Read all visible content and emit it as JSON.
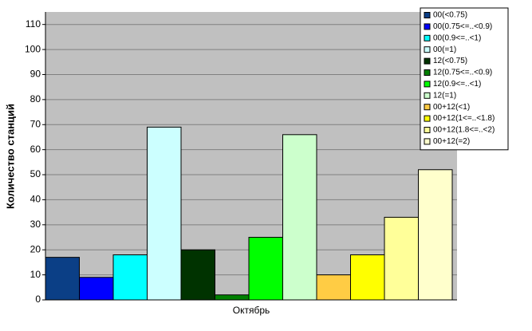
{
  "chart_data": {
    "type": "bar",
    "y_label": "Количество станций",
    "categories": [
      "Октябрь"
    ],
    "series": [
      {
        "name": "00(<0.75)",
        "color": "#0b3f86",
        "values": [
          17
        ]
      },
      {
        "name": "00(0.75<=..<0.9)",
        "color": "#0000ff",
        "values": [
          9
        ]
      },
      {
        "name": "00(0.9<=..<1)",
        "color": "#00ffff",
        "values": [
          18
        ]
      },
      {
        "name": "00(=1)",
        "color": "#ccffff",
        "values": [
          69
        ]
      },
      {
        "name": "12(<0.75)",
        "color": "#003300",
        "values": [
          20
        ]
      },
      {
        "name": "12(0.75<=..<0.9)",
        "color": "#008000",
        "values": [
          2
        ]
      },
      {
        "name": "12(0.9<=..<1)",
        "color": "#00ff00",
        "values": [
          25
        ]
      },
      {
        "name": "12(=1)",
        "color": "#ccffcc",
        "values": [
          66
        ]
      },
      {
        "name": "00+12(<1)",
        "color": "#ffcc44",
        "values": [
          10
        ]
      },
      {
        "name": "00+12(1<=..<1.8)",
        "color": "#ffff00",
        "values": [
          18
        ]
      },
      {
        "name": "00+12(1.8<=..<2)",
        "color": "#ffff99",
        "values": [
          33
        ]
      },
      {
        "name": "00+12(=2)",
        "color": "#ffffcc",
        "values": [
          52
        ]
      }
    ],
    "ylim": [
      0,
      115
    ],
    "yticks": [
      0,
      10,
      20,
      30,
      40,
      50,
      60,
      70,
      80,
      90,
      100,
      110
    ],
    "grid": true,
    "legend": "top-right"
  }
}
